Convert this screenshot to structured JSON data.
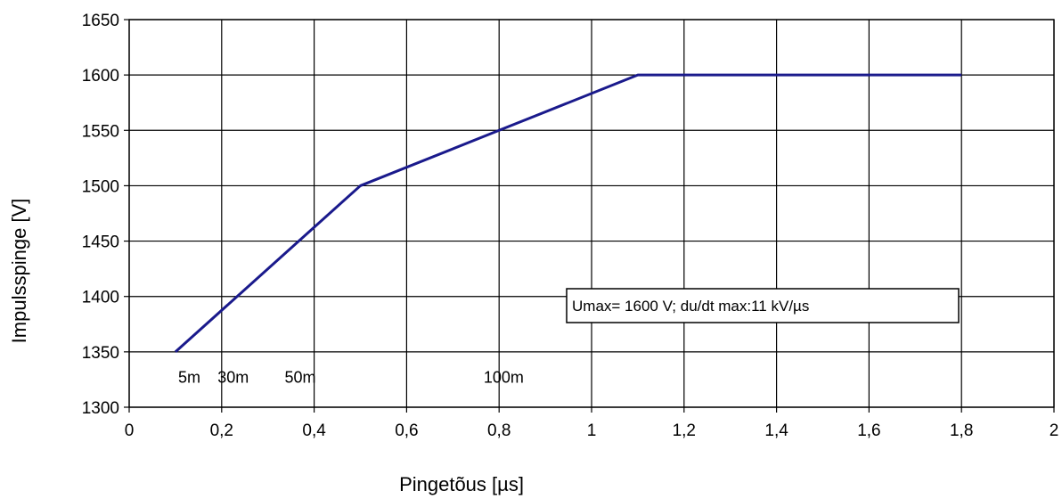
{
  "chart_data": {
    "type": "line",
    "title": "",
    "xlabel": "Pingetõus [µs]",
    "ylabel": "Impulsspinge [V]",
    "xlim": [
      0,
      2
    ],
    "ylim": [
      1300,
      1650
    ],
    "x_ticks": [
      "0",
      "0,2",
      "0,4",
      "0,6",
      "0,8",
      "1",
      "1,2",
      "1,4",
      "1,6",
      "1,8",
      "2"
    ],
    "y_ticks": [
      "1300",
      "1350",
      "1400",
      "1450",
      "1500",
      "1550",
      "1600",
      "1650"
    ],
    "grid": true,
    "line_color": "#1a1a8c",
    "series": [
      {
        "x": [
          0.1,
          0.5,
          0.8,
          1.1,
          1.8
        ],
        "y": [
          1350,
          1500,
          1550,
          1600,
          1600
        ]
      }
    ],
    "annotations": [
      {
        "text": "5m",
        "x": 0.13,
        "y": 1322
      },
      {
        "text": "30m",
        "x": 0.225,
        "y": 1322
      },
      {
        "text": "50m",
        "x": 0.37,
        "y": 1322
      },
      {
        "text": "100m",
        "x": 0.81,
        "y": 1322
      }
    ],
    "legend_text": "Umax= 1600 V; du/dt max:11 kV/µs"
  }
}
